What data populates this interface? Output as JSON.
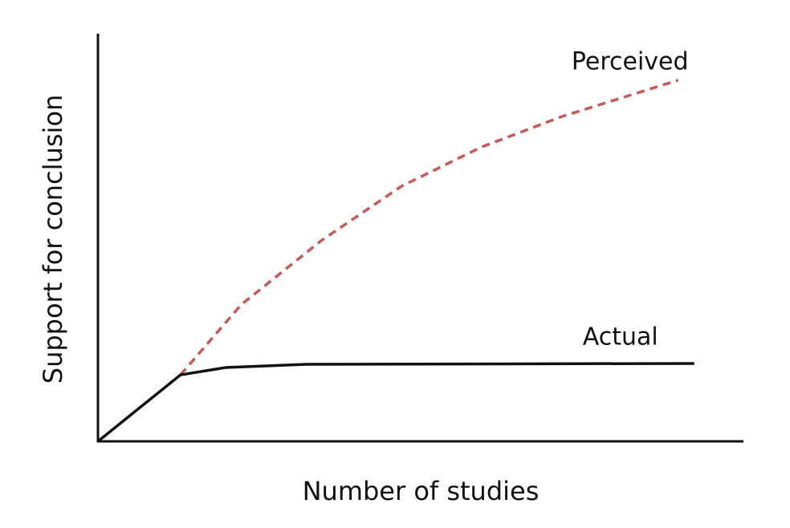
{
  "chart_data": {
    "type": "line",
    "x_label": "Number of studies",
    "y_label": "Support for conclusion",
    "xlim": [
      0,
      100
    ],
    "ylim": [
      0,
      100
    ],
    "series": [
      {
        "name": "Perceived",
        "color": "#c55a57",
        "line_style": "dashed",
        "x": [
          12.8,
          22.2,
          34.6,
          47.1,
          59.5,
          72,
          90
        ],
        "values": [
          16.3,
          33.5,
          49.2,
          62.6,
          72.2,
          79.7,
          88.6
        ]
      },
      {
        "name": "Actual",
        "color": "#111111",
        "line_style": "solid",
        "x": [
          0,
          12.8,
          19.8,
          32.3,
          92.5
        ],
        "values": [
          0,
          16.3,
          18.1,
          18.9,
          19.1
        ]
      }
    ]
  }
}
